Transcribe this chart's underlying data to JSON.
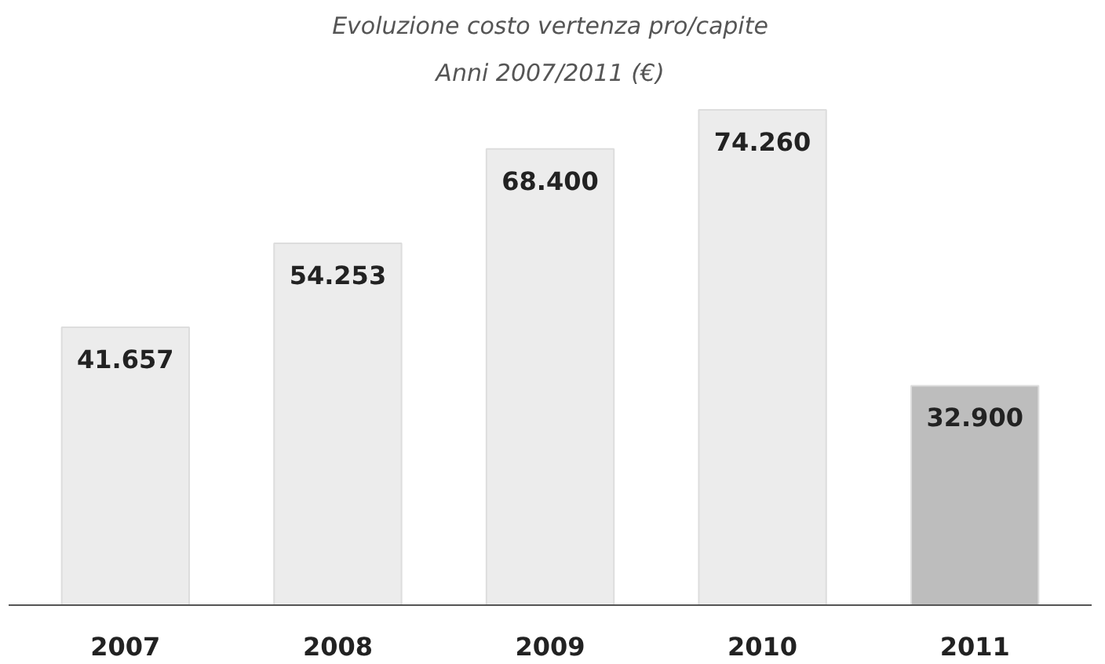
{
  "chart_data": {
    "type": "bar",
    "title": "Evoluzione costo vertenza pro/capite",
    "subtitle": "Anni 2007/2011 (€)",
    "categories": [
      "2007",
      "2008",
      "2009",
      "2010",
      "2011"
    ],
    "values": [
      41657,
      54253,
      68400,
      74260,
      32900
    ],
    "value_labels": [
      "41.657",
      "54.253",
      "68.400",
      "74.260",
      "32.900"
    ],
    "colors": [
      "#ececec",
      "#ececec",
      "#ececec",
      "#ececec",
      "#bdbdbd"
    ],
    "grid": false
  }
}
